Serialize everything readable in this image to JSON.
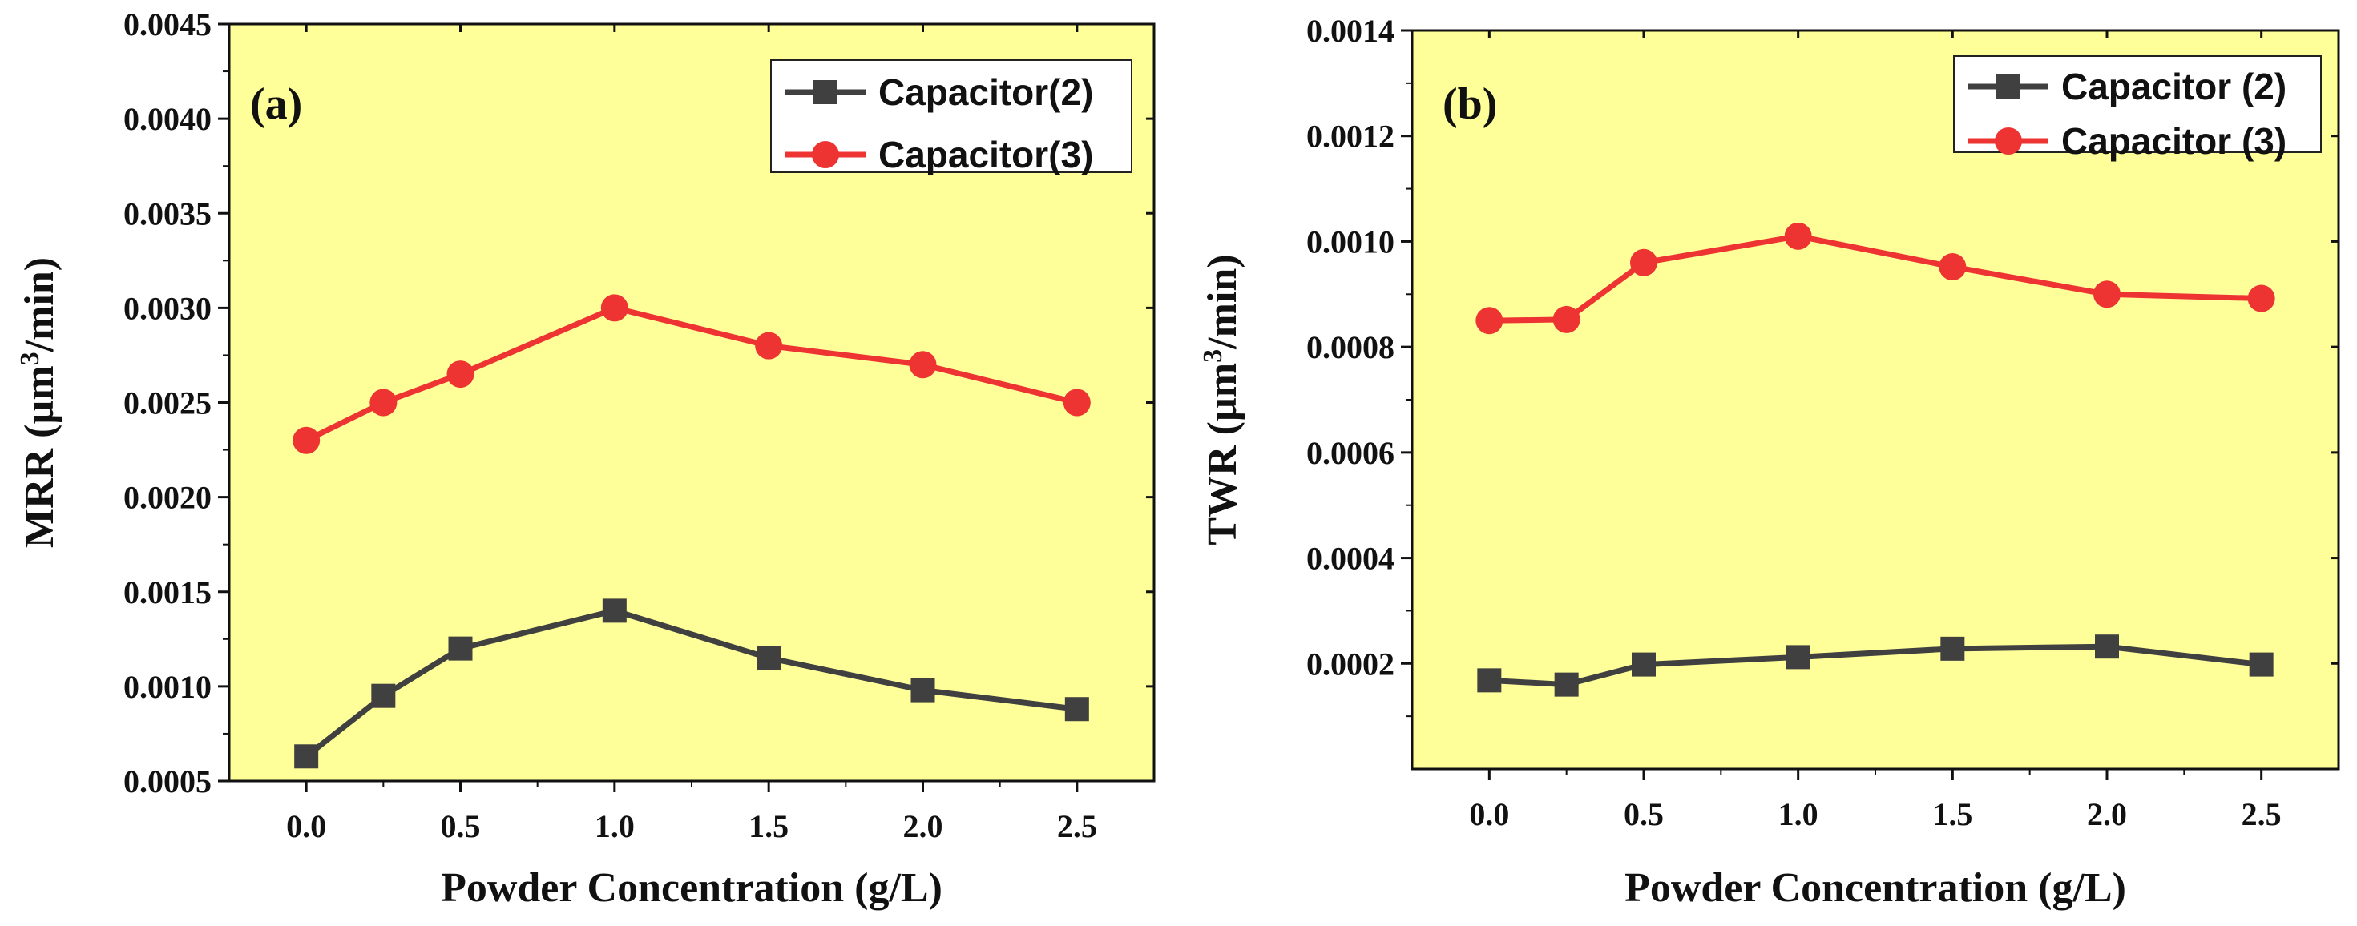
{
  "chart_data": [
    {
      "type": "line",
      "panel_label": "(a)",
      "xlabel": "Powder Concentration (g/L)",
      "ylabel_main": "MRR (µm",
      "ylabel_sup": "3",
      "ylabel_end": "/min)",
      "x": [
        0.0,
        0.25,
        0.5,
        1.0,
        1.5,
        2.0,
        2.5
      ],
      "xlim": [
        -0.25,
        2.75
      ],
      "ylim": [
        0.0005,
        0.0045
      ],
      "xticks": [
        0.0,
        0.5,
        1.0,
        1.5,
        2.0,
        2.5
      ],
      "xtick_labels": [
        "0.0",
        "0.5",
        "1.0",
        "1.5",
        "2.0",
        "2.5"
      ],
      "yticks": [
        0.0005,
        0.001,
        0.0015,
        0.002,
        0.0025,
        0.003,
        0.0035,
        0.004,
        0.0045
      ],
      "ytick_labels": [
        "0.0005",
        "0.0010",
        "0.0015",
        "0.0020",
        "0.0025",
        "0.0030",
        "0.0035",
        "0.0040",
        "0.0045"
      ],
      "background": "#ffff99",
      "legend_position": "top-right",
      "series": [
        {
          "name": "Capacitor(2)",
          "marker": "square",
          "color": "#404040",
          "values": [
            0.00063,
            0.00095,
            0.0012,
            0.0014,
            0.00115,
            0.00098,
            0.00088
          ]
        },
        {
          "name": "Capacitor(3)",
          "marker": "circle",
          "color": "#ee3333",
          "values": [
            0.0023,
            0.0025,
            0.00265,
            0.003,
            0.0028,
            0.0027,
            0.0025
          ]
        }
      ]
    },
    {
      "type": "line",
      "panel_label": "(b)",
      "xlabel": "Powder Concentration (g/L)",
      "ylabel_main": "TWR (µm",
      "ylabel_sup": "3",
      "ylabel_end": "/min)",
      "x": [
        0.0,
        0.25,
        0.5,
        1.0,
        1.5,
        2.0,
        2.5
      ],
      "xlim": [
        -0.25,
        2.75
      ],
      "ylim": [
        0.0,
        0.0014
      ],
      "xticks": [
        0.0,
        0.5,
        1.0,
        1.5,
        2.0,
        2.5
      ],
      "xtick_labels": [
        "0.0",
        "0.5",
        "1.0",
        "1.5",
        "2.0",
        "2.5"
      ],
      "yticks": [
        0.0002,
        0.0004,
        0.0006,
        0.0008,
        0.001,
        0.0012,
        0.0014
      ],
      "ytick_labels": [
        "0.0002",
        "0.0004",
        "0.0006",
        "0.0008",
        "0.0010",
        "0.0012",
        "0.0014"
      ],
      "background": "#ffff99",
      "legend_position": "top-right",
      "series": [
        {
          "name": "Capacitor (2)",
          "marker": "square",
          "color": "#404040",
          "values": [
            0.000168,
            0.00016,
            0.000198,
            0.000212,
            0.000228,
            0.000232,
            0.000198
          ]
        },
        {
          "name": "Capacitor (3)",
          "marker": "circle",
          "color": "#ee3333",
          "values": [
            0.00085,
            0.000852,
            0.00096,
            0.00101,
            0.000952,
            0.0009,
            0.000892
          ]
        }
      ]
    }
  ]
}
